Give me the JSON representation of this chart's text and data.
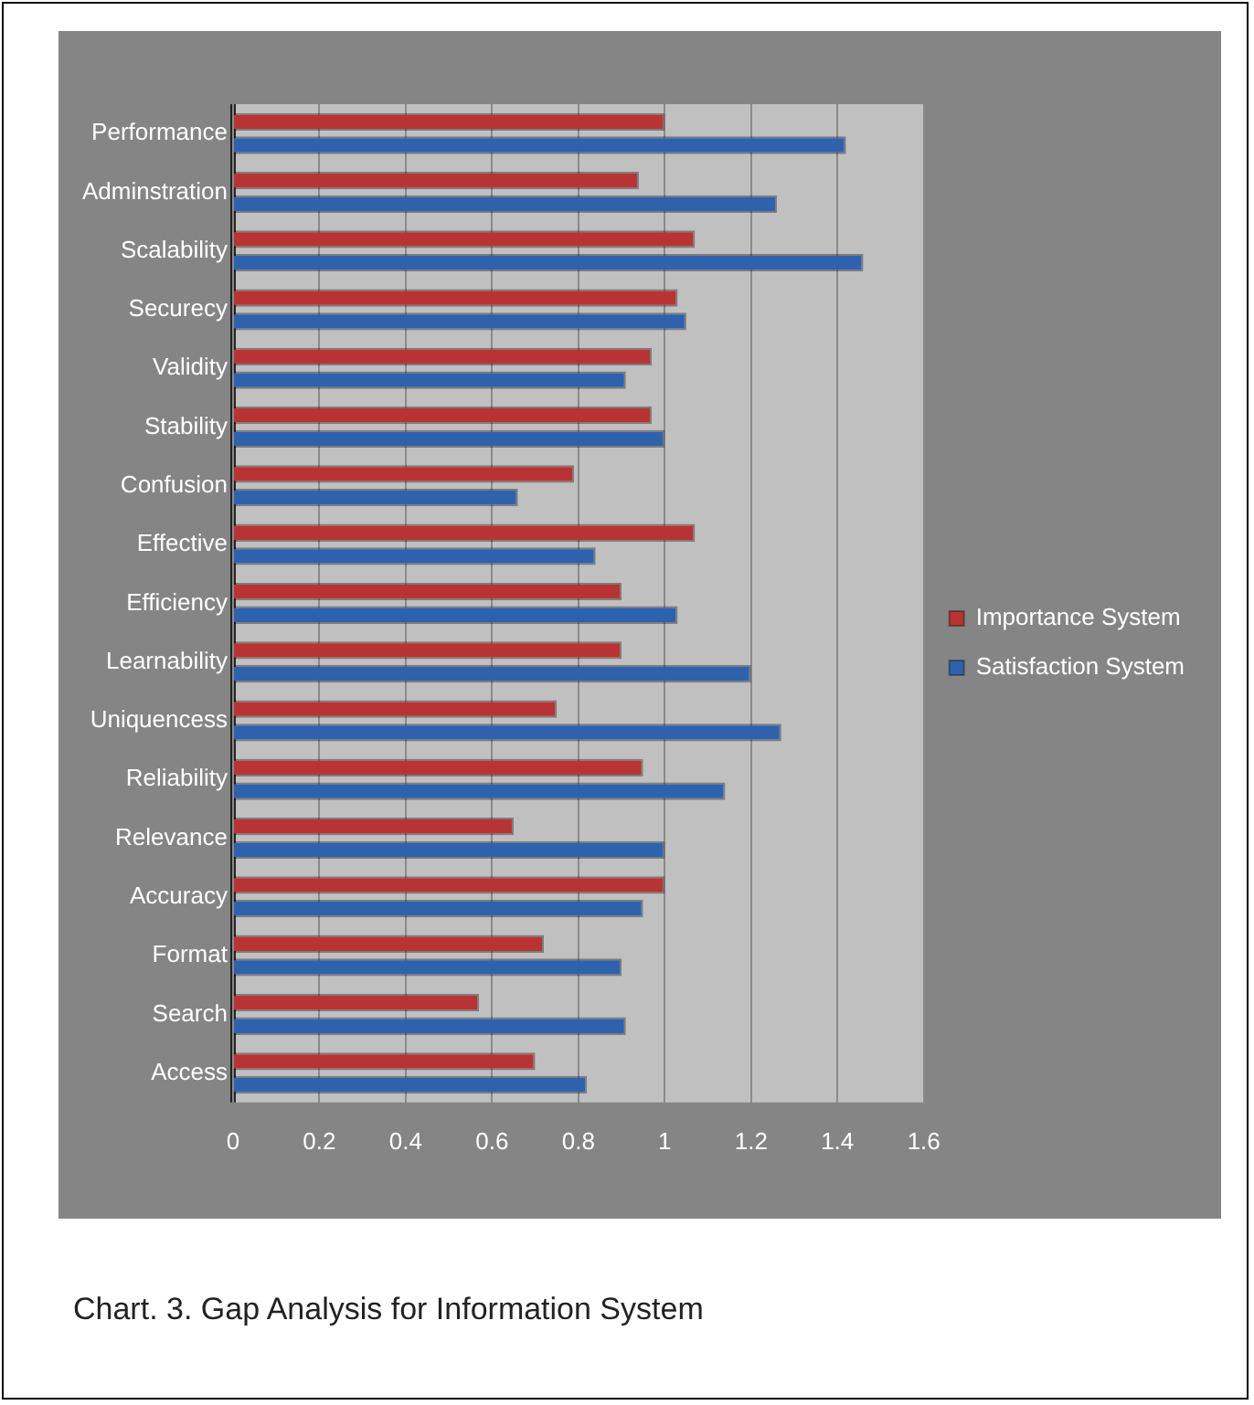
{
  "chart_data": {
    "type": "bar",
    "orientation": "horizontal",
    "categories": [
      "Performance",
      "Adminstration",
      "Scalability",
      "Securecy",
      "Validity",
      "Stability",
      "Confusion",
      "Effective",
      "Efficiency",
      "Learnability",
      "Uniquencess",
      "Reliability",
      "Relevance",
      "Accuracy",
      "Format",
      "Search",
      "Access"
    ],
    "series": [
      {
        "name": "Importance System",
        "color": "#b83434",
        "values": [
          1.0,
          0.94,
          1.07,
          1.03,
          0.97,
          0.97,
          0.79,
          1.07,
          0.9,
          0.9,
          0.75,
          0.95,
          0.65,
          1.0,
          0.72,
          0.57,
          0.7
        ]
      },
      {
        "name": "Satisfaction System",
        "color": "#2f62ad",
        "values": [
          1.42,
          1.26,
          1.46,
          1.05,
          0.91,
          1.0,
          0.66,
          0.84,
          1.03,
          1.2,
          1.27,
          1.14,
          1.0,
          0.95,
          0.9,
          0.91,
          0.82
        ]
      }
    ],
    "xlim": [
      0,
      1.6
    ],
    "xticks": [
      0,
      0.2,
      0.4,
      0.6,
      0.8,
      1,
      1.2,
      1.4,
      1.6
    ],
    "grid": "x",
    "legend": "right",
    "annotations": [
      "Chart. 3. Gap Analysis for Information System"
    ]
  }
}
